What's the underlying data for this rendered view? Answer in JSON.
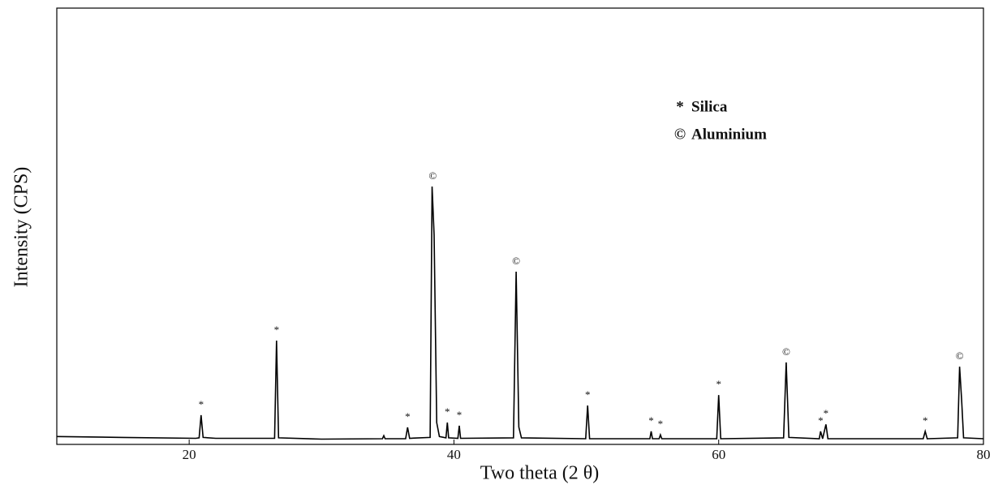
{
  "chart_data": {
    "type": "line",
    "xlabel": "Two theta (2 θ)",
    "ylabel": "Intensity (CPS)",
    "xlim": [
      10,
      80
    ],
    "xticks": [
      20,
      40,
      60,
      80
    ],
    "ylim": [
      0,
      100
    ],
    "color": "#000000",
    "x": [
      10,
      15,
      20.5,
      20.75,
      20.9,
      21.05,
      22,
      26.45,
      26.6,
      26.75,
      30,
      34.6,
      34.7,
      34.8,
      36.35,
      36.5,
      36.65,
      38.2,
      38.35,
      38.5,
      38.7,
      38.9,
      39.4,
      39.5,
      39.6,
      40.3,
      40.4,
      40.5,
      44.5,
      44.7,
      44.9,
      45.1,
      49.95,
      50.1,
      50.25,
      54.8,
      54.9,
      55,
      55.5,
      55.6,
      55.7,
      59.85,
      60,
      60.15,
      64.9,
      65.1,
      65.3,
      67.6,
      67.7,
      67.85,
      68.1,
      68.25,
      75.45,
      75.6,
      75.75,
      78.05,
      78.2,
      78.35,
      78.5,
      80
    ],
    "values": [
      1.8,
      1.6,
      1.4,
      1.5,
      6.7,
      1.6,
      1.4,
      1.4,
      23.8,
      1.5,
      1.2,
      1.3,
      2.0,
      1.3,
      1.3,
      3.9,
      1.4,
      1.6,
      59.1,
      48,
      5,
      1.8,
      1.5,
      5,
      1.5,
      1.4,
      4.3,
      1.4,
      1.5,
      39.6,
      4,
      1.5,
      1.3,
      8.9,
      1.3,
      1.3,
      3,
      1.3,
      1.3,
      2.2,
      1.3,
      1.3,
      11.3,
      1.3,
      1.5,
      18.8,
      1.6,
      1.3,
      3,
      1.3,
      4.6,
      1.3,
      1.3,
      3,
      1.3,
      1.5,
      17.8,
      10.2,
      1.5,
      1.3
    ],
    "markers": [
      {
        "name": "Silica",
        "symbol": "*",
        "x": [
          20.9,
          26.6,
          36.5,
          39.5,
          40.4,
          50.1,
          54.9,
          55.6,
          60,
          67.7,
          68.1,
          75.6
        ],
        "values": [
          6.7,
          23.8,
          3.9,
          5,
          4.3,
          8.9,
          3,
          2.2,
          11.3,
          3,
          4.6,
          3
        ]
      },
      {
        "name": "Aluminium",
        "symbol": "©",
        "x": [
          38.4,
          44.7,
          65.1,
          78.2
        ],
        "values": [
          59.1,
          39.6,
          18.8,
          17.8
        ]
      }
    ]
  }
}
